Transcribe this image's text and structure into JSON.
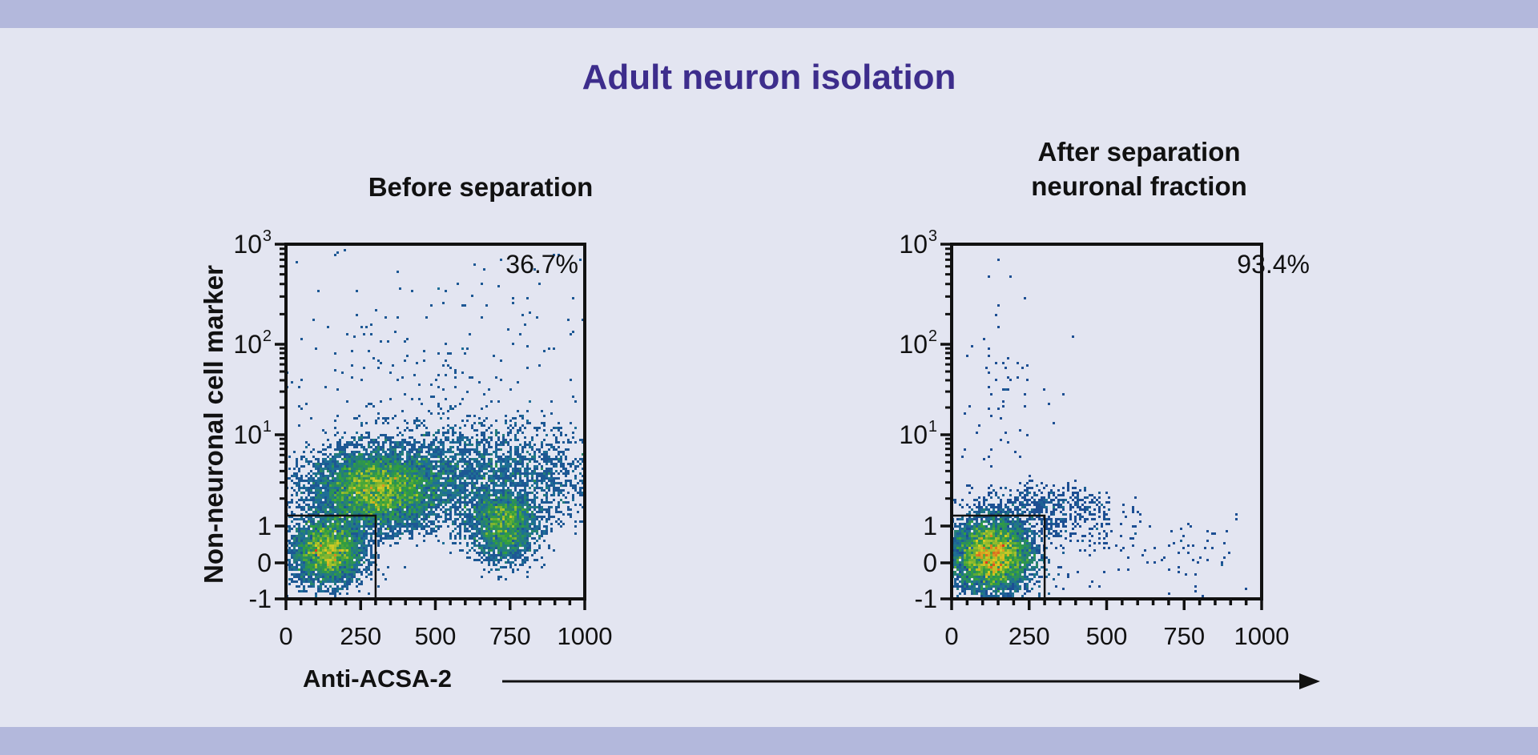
{
  "title": "Adult neuron isolation",
  "colors": {
    "band": "#b3b8dc",
    "background": "#e3e5f1",
    "title": "#3d2d8c",
    "density_low": "#1c2d8f",
    "density_high": "#e03a1e"
  },
  "x_axis_label": "Anti-ACSA-2",
  "y_axis_label": "Non-neuronal cell marker",
  "chart_data": [
    {
      "type": "scatter",
      "style": "density-colored flow cytometry dot plot",
      "title": "Before separation",
      "gate_percent": "36.7%",
      "gate": {
        "x": [
          0,
          300
        ],
        "y": [
          -1,
          1.3
        ]
      },
      "xlim": [
        0,
        1000
      ],
      "ylim": [
        -1,
        1000
      ],
      "y_scale": "linear below 1, log above 1",
      "x_ticks": [
        "0",
        "250",
        "500",
        "750",
        "1000"
      ],
      "y_ticks": [
        {
          "base": "-1",
          "sup": ""
        },
        {
          "base": "0",
          "sup": ""
        },
        {
          "base": "1",
          "sup": ""
        },
        {
          "base": "10",
          "sup": "1"
        },
        {
          "base": "10",
          "sup": "2"
        },
        {
          "base": "10",
          "sup": "3"
        }
      ],
      "populations": [
        {
          "x_mean": 300,
          "y_mean": 2.5,
          "x_sd": 110,
          "y_sd_decades": 0.22,
          "count": 6500
        },
        {
          "x_mean": 140,
          "y_mean": 0.3,
          "x_sd": 60,
          "y_sd": 0.45,
          "count": 3500
        },
        {
          "x_mean": 730,
          "y_mean": 1.0,
          "x_sd": 55,
          "y_sd": 0.5,
          "count": 2200
        },
        {
          "x_mean": 650,
          "y_mean": 3.5,
          "x_sd": 200,
          "y_sd_decades": 0.3,
          "count": 2800
        },
        {
          "x_mean": 500,
          "y_mean": 60,
          "x_sd": 300,
          "y_sd_decades": 0.6,
          "count": 220
        }
      ]
    },
    {
      "type": "scatter",
      "style": "density-colored flow cytometry dot plot",
      "title": "After separation\nneuronal fraction",
      "title_lines": [
        "After separation",
        "neuronal fraction"
      ],
      "gate_percent": "93.4%",
      "gate": {
        "x": [
          0,
          300
        ],
        "y": [
          -1,
          1.3
        ]
      },
      "xlim": [
        0,
        1000
      ],
      "ylim": [
        -1,
        1000
      ],
      "y_scale": "linear below 1, log above 1",
      "x_ticks": [
        "0",
        "250",
        "500",
        "750",
        "1000"
      ],
      "y_ticks": [
        {
          "base": "-1",
          "sup": ""
        },
        {
          "base": "0",
          "sup": ""
        },
        {
          "base": "1",
          "sup": ""
        },
        {
          "base": "10",
          "sup": "1"
        },
        {
          "base": "10",
          "sup": "2"
        },
        {
          "base": "10",
          "sup": "3"
        }
      ],
      "populations": [
        {
          "x_mean": 130,
          "y_mean": 0.2,
          "x_sd": 65,
          "y_sd": 0.5,
          "count": 8000
        },
        {
          "x_mean": 300,
          "y_mean": 1.5,
          "x_sd": 120,
          "y_sd": 0.6,
          "count": 600
        },
        {
          "x_mean": 650,
          "y_mean": 0.2,
          "x_sd": 200,
          "y_sd": 0.6,
          "count": 90
        },
        {
          "x_mean": 150,
          "y_mean": 50,
          "x_sd": 80,
          "y_sd_decades": 0.6,
          "count": 70
        }
      ]
    }
  ]
}
